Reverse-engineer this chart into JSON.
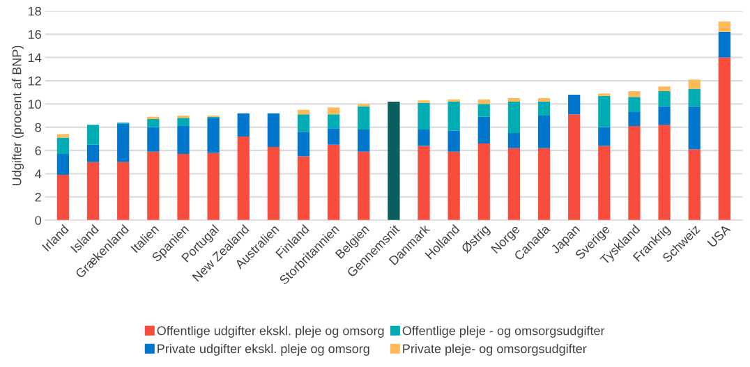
{
  "chart_data": {
    "type": "bar",
    "stacked": true,
    "ylabel": "Udgifter (procent af BNP)",
    "categories": [
      "Irland",
      "Island",
      "Grækenland",
      "Italien",
      "Spanien",
      "Portugal",
      "New Zealand",
      "Australien",
      "Finland",
      "Storbritannien",
      "Belgien",
      "Gennemsnit",
      "Danmark",
      "Holland",
      "Østrig",
      "Norge",
      "Canada",
      "Japan",
      "Sverige",
      "Tyskland",
      "Frankrig",
      "Schweiz",
      "USA"
    ],
    "series": [
      {
        "name": "Offentlige udgifter ekskl. pleje og omsorg",
        "color": "#f84c3c",
        "colors": [
          "#f84c3c",
          "#f84c3c",
          "#f84c3c",
          "#f84c3c",
          "#f84c3c",
          "#f84c3c",
          "#f84c3c",
          "#f84c3c",
          "#f84c3c",
          "#f84c3c",
          "#f84c3c",
          "#0b5e5e",
          "#f84c3c",
          "#f84c3c",
          "#f84c3c",
          "#f84c3c",
          "#f84c3c",
          "#f84c3c",
          "#f84c3c",
          "#f84c3c",
          "#f84c3c",
          "#f84c3c",
          "#f84c3c"
        ],
        "values": [
          3.9,
          5.0,
          5.0,
          5.9,
          5.7,
          5.8,
          7.2,
          6.3,
          5.5,
          6.5,
          5.9,
          10.2,
          6.4,
          5.9,
          6.6,
          6.2,
          6.2,
          9.1,
          6.4,
          8.1,
          8.2,
          6.1,
          14.0
        ]
      },
      {
        "name": "Private udgifter ekskl. pleje og omsorg",
        "color": "#0077cc",
        "values": [
          1.8,
          1.5,
          3.3,
          2.1,
          2.4,
          3.0,
          2.0,
          2.9,
          2.1,
          1.4,
          1.9,
          0,
          1.4,
          1.8,
          2.3,
          1.3,
          2.8,
          1.7,
          1.6,
          1.2,
          1.6,
          3.7,
          2.2
        ]
      },
      {
        "name": "Offentlige pleje - og omsorgsudgifter",
        "color": "#00adb5",
        "values": [
          1.4,
          1.7,
          0.1,
          0.7,
          0.7,
          0.1,
          0,
          0,
          1.5,
          1.2,
          2.0,
          0,
          2.3,
          2.5,
          1.1,
          2.7,
          1.2,
          0,
          2.7,
          1.3,
          1.3,
          1.5,
          0
        ]
      },
      {
        "name": "Private pleje- og omsorgsudgifter",
        "color": "#ffb957",
        "values": [
          0.3,
          0,
          0,
          0.2,
          0.2,
          0.1,
          0,
          0,
          0.4,
          0.6,
          0.2,
          0,
          0.2,
          0.2,
          0.4,
          0.3,
          0.3,
          0,
          0.2,
          0.5,
          0.4,
          0.8,
          0.9
        ]
      }
    ],
    "ylim": [
      0,
      18
    ],
    "yticks": [
      0,
      2,
      4,
      6,
      8,
      10,
      12,
      14,
      16,
      18
    ],
    "grid": "y",
    "legend": "bottom"
  }
}
